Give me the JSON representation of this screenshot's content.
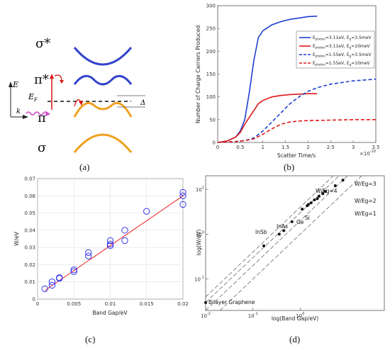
{
  "panel_labels": [
    "(a)",
    "(b)",
    "(c)",
    "(d)"
  ],
  "panel_a": {
    "band_labels": [
      "σ*",
      "π*",
      "π",
      "σ"
    ],
    "energy_label": "E",
    "k_label": "k",
    "fermi_label": "E",
    "fermi_sub": "F",
    "delta_label": "Δ",
    "colors": {
      "antibonding": "#3344cc",
      "bonding": "#f0a020",
      "excitation": "#dd1111",
      "relax": "#cc44cc"
    }
  },
  "chart_data": [
    {
      "type": "line",
      "panel": "b",
      "ylabel": "Number of Charge Carriers Produced",
      "xlabel": "Scatter Time/s",
      "x_multiplier": "×10",
      "x_multiplier_exp": "-10",
      "xlim": [
        0,
        3.5
      ],
      "ylim": [
        0,
        300
      ],
      "xticks": [
        "0",
        "0.5",
        "1",
        "1.5",
        "2",
        "2.5",
        "3",
        "3.5"
      ],
      "yticks": [
        "0",
        "50",
        "100",
        "150",
        "200",
        "250",
        "300"
      ],
      "legend_position": "right",
      "series": [
        {
          "legend_parts": [
            "E",
            "photon",
            "=3.11eV, E",
            "g",
            "=3.5meV"
          ],
          "color": "#1f3fd0",
          "dash": "solid",
          "x": [
            0,
            0.2,
            0.4,
            0.5,
            0.6,
            0.7,
            0.8,
            0.9,
            1.0,
            1.2,
            1.4,
            1.6,
            1.8,
            2.0,
            2.2
          ],
          "y": [
            0,
            3,
            12,
            25,
            50,
            110,
            180,
            230,
            245,
            258,
            265,
            270,
            273,
            276,
            277
          ]
        },
        {
          "legend_parts": [
            "E",
            "photon",
            "=3.11eV, E",
            "g",
            "=10meV"
          ],
          "color": "#e01818",
          "dash": "solid",
          "x": [
            0,
            0.2,
            0.4,
            0.5,
            0.6,
            0.7,
            0.8,
            0.9,
            1.0,
            1.2,
            1.4,
            1.6,
            1.8,
            2.0,
            2.2
          ],
          "y": [
            0,
            3,
            12,
            22,
            40,
            55,
            70,
            85,
            92,
            100,
            103,
            105,
            106,
            107,
            107
          ]
        },
        {
          "legend_parts": [
            "E",
            "photon",
            "=1.55eV, E",
            "g",
            "=3.5meV"
          ],
          "color": "#1f3fd0",
          "dash": "dashed",
          "x": [
            0,
            0.4,
            0.6,
            0.8,
            1.0,
            1.2,
            1.4,
            1.6,
            1.8,
            2.0,
            2.2,
            2.5,
            3.0,
            3.5
          ],
          "y": [
            0,
            2,
            4,
            10,
            25,
            45,
            65,
            85,
            100,
            112,
            120,
            128,
            135,
            139
          ]
        },
        {
          "legend_parts": [
            "E",
            "photon",
            "=1.55eV, E",
            "g",
            "=10meV"
          ],
          "color": "#e01818",
          "dash": "dashed",
          "x": [
            0,
            0.4,
            0.6,
            0.8,
            1.0,
            1.2,
            1.4,
            1.6,
            1.8,
            2.0,
            2.5,
            3.0,
            3.5
          ],
          "y": [
            0,
            2,
            4,
            8,
            18,
            30,
            40,
            45,
            47,
            48,
            49,
            50,
            50
          ]
        }
      ]
    },
    {
      "type": "scatter",
      "panel": "c",
      "xlabel": "Band Gap/eV",
      "ylabel": "W/eV",
      "xlim": [
        0,
        0.02
      ],
      "ylim": [
        0,
        0.07
      ],
      "xticks": [
        "0",
        "0.005",
        "0.01",
        "0.015",
        "0.02"
      ],
      "yticks": [
        "0",
        "0.01",
        "0.02",
        "0.03",
        "0.04",
        "0.05",
        "0.06",
        "0.07"
      ],
      "grid": true,
      "point_color": "#3333ee",
      "line_color": "#ee2222",
      "fit_line": {
        "x": [
          0.001,
          0.02
        ],
        "y": [
          0.005,
          0.06
        ]
      },
      "points": [
        [
          0.001,
          0.006
        ],
        [
          0.002,
          0.008
        ],
        [
          0.002,
          0.01
        ],
        [
          0.003,
          0.012
        ],
        [
          0.003,
          0.0125
        ],
        [
          0.005,
          0.016
        ],
        [
          0.005,
          0.017
        ],
        [
          0.007,
          0.025
        ],
        [
          0.007,
          0.027
        ],
        [
          0.01,
          0.031
        ],
        [
          0.01,
          0.032
        ],
        [
          0.01,
          0.034
        ],
        [
          0.012,
          0.034
        ],
        [
          0.012,
          0.04
        ],
        [
          0.015,
          0.051
        ],
        [
          0.02,
          0.055
        ],
        [
          0.02,
          0.06
        ],
        [
          0.02,
          0.062
        ]
      ]
    },
    {
      "type": "scatter",
      "panel": "d",
      "xlabel": "log(Band Gap/eV)",
      "ylabel": "log(W/eV)",
      "xscale": "log",
      "yscale": "log",
      "xlim": [
        0.01,
        60
      ],
      "ylim": [
        0.02,
        20
      ],
      "xticks": [
        {
          "base": "10",
          "exp": "-2"
        },
        {
          "base": "10",
          "exp": "-1"
        },
        {
          "base": "10",
          "exp": "0"
        }
      ],
      "yticks": [
        {
          "base": "10",
          "exp": "1"
        },
        {
          "base": "10",
          "exp": "0"
        },
        {
          "base": "10",
          "exp": "-1"
        }
      ],
      "point_color": "#111111",
      "reference_lines": [
        {
          "label": "W/Eg=1",
          "ratio": 1
        },
        {
          "label": "W/Eg=2",
          "ratio": 2
        },
        {
          "label": "W/Eg=3",
          "ratio": 3
        },
        {
          "label": "W/Eg=4",
          "ratio": 4
        }
      ],
      "annotations": [
        {
          "text": "InSb"
        },
        {
          "text": "InAs"
        },
        {
          "text": "Ge"
        },
        {
          "text": "Si"
        },
        {
          "text": "Bilayer Graphene"
        }
      ],
      "points": [
        [
          0.01,
          0.03
        ],
        [
          0.17,
          0.55
        ],
        [
          0.36,
          1.0
        ],
        [
          0.45,
          1.2
        ],
        [
          0.67,
          1.9
        ],
        [
          1.1,
          3.6
        ],
        [
          1.4,
          4.3
        ],
        [
          1.5,
          4.6
        ],
        [
          1.7,
          5.0
        ],
        [
          2.0,
          5.8
        ],
        [
          2.3,
          6.2
        ],
        [
          2.5,
          7.0
        ],
        [
          3.0,
          8.0
        ],
        [
          3.4,
          9.0
        ],
        [
          5.5,
          12.0
        ],
        [
          8.0,
          16.0
        ]
      ]
    }
  ]
}
